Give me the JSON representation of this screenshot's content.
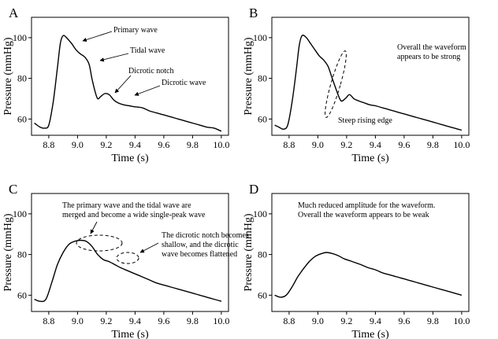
{
  "chart_data": [
    {
      "panel": "A",
      "type": "line",
      "xlabel": "Time (s)",
      "ylabel": "Pressure (mmHg)",
      "xticks": [
        "8.8",
        "9.0",
        "9.2",
        "9.4",
        "9.6",
        "9.8",
        "10.0"
      ],
      "yticks": [
        "60",
        "80",
        "100"
      ],
      "xlim": [
        8.68,
        10.05
      ],
      "ylim": [
        52,
        110
      ],
      "series": [
        {
          "x": [
            8.7,
            8.74,
            8.77,
            8.8,
            8.83,
            8.86,
            8.88,
            8.9,
            8.93,
            8.96,
            8.99,
            9.02,
            9.05,
            9.08,
            9.1,
            9.12,
            9.14,
            9.16,
            9.19,
            9.22,
            9.25,
            9.28,
            9.32,
            9.36,
            9.4,
            9.45,
            9.5,
            9.55,
            9.6,
            9.65,
            9.7,
            9.75,
            9.8,
            9.85,
            9.9,
            9.95,
            10.0
          ],
          "y": [
            58,
            56,
            55.5,
            57,
            68,
            85,
            97,
            101,
            99.5,
            97,
            94,
            92,
            90.5,
            87,
            80,
            74,
            70,
            71,
            72.5,
            72,
            69.5,
            68,
            67,
            66.5,
            66,
            65.5,
            64,
            63,
            62,
            61,
            60,
            59,
            58,
            57,
            56,
            55.5,
            54
          ]
        }
      ],
      "annotations": [
        {
          "text": "Primary wave",
          "x": 8.88,
          "y": 101
        },
        {
          "text": "Tidal wave",
          "x": 9.03,
          "y": 92
        },
        {
          "text": "Dicrotic notch",
          "x": 9.16,
          "y": 71
        },
        {
          "text": "Dicrotic wave",
          "x": 9.28,
          "y": 72.5
        }
      ]
    },
    {
      "panel": "B",
      "type": "line",
      "xlabel": "Time (s)",
      "ylabel": "Pressure (mmHg)",
      "xticks": [
        "8.8",
        "9.0",
        "9.2",
        "9.4",
        "9.6",
        "9.8",
        "10.0"
      ],
      "yticks": [
        "60",
        "80",
        "100"
      ],
      "xlim": [
        8.68,
        10.05
      ],
      "ylim": [
        52,
        110
      ],
      "series": [
        {
          "x": [
            8.7,
            8.73,
            8.76,
            8.79,
            8.82,
            8.85,
            8.87,
            8.89,
            8.92,
            8.95,
            8.98,
            9.01,
            9.04,
            9.07,
            9.1,
            9.13,
            9.16,
            9.19,
            9.22,
            9.25,
            9.28,
            9.32,
            9.36,
            9.4,
            9.45,
            9.5,
            9.55,
            9.6,
            9.65,
            9.7,
            9.75,
            9.8,
            9.85,
            9.9,
            9.95,
            10.0
          ],
          "y": [
            57,
            56,
            55,
            57,
            68,
            84,
            96,
            101,
            100,
            97,
            94,
            91,
            89,
            86,
            80,
            74,
            69,
            70,
            72,
            70,
            69,
            68,
            67,
            66.5,
            65.5,
            64.5,
            63.5,
            62.5,
            61.5,
            60.5,
            59.5,
            58.5,
            57.5,
            56.5,
            55.5,
            54.5
          ]
        }
      ],
      "annotations": [
        {
          "text": "Overall the waveform"
        },
        {
          "text": "appears to be strong"
        },
        {
          "text": "Steep rising edge"
        }
      ]
    },
    {
      "panel": "C",
      "type": "line",
      "xlabel": "Time (s)",
      "ylabel": "Pressure (mmHg)",
      "xticks": [
        "8.8",
        "9.0",
        "9.2",
        "9.4",
        "9.6",
        "9.8",
        "10.0"
      ],
      "yticks": [
        "60",
        "80",
        "100"
      ],
      "xlim": [
        8.68,
        10.05
      ],
      "ylim": [
        52,
        110
      ],
      "series": [
        {
          "x": [
            8.7,
            8.74,
            8.78,
            8.82,
            8.86,
            8.9,
            8.94,
            8.98,
            9.02,
            9.06,
            9.1,
            9.14,
            9.18,
            9.22,
            9.26,
            9.3,
            9.35,
            9.4,
            9.45,
            9.5,
            9.55,
            9.6,
            9.65,
            9.7,
            9.75,
            9.8,
            9.85,
            9.9,
            9.95,
            10.0
          ],
          "y": [
            58,
            57,
            58,
            66,
            75,
            81,
            85,
            86.5,
            87,
            86.5,
            84,
            80,
            77.5,
            76.5,
            75,
            73.5,
            72,
            70.5,
            69,
            67.5,
            66,
            65,
            64,
            63,
            62,
            61,
            60,
            59,
            58,
            57
          ]
        }
      ],
      "annotations": [
        {
          "text": "The primary wave and the tidal wave are"
        },
        {
          "text": "merged and become a wide single-peak wave"
        },
        {
          "text": "The dicrotic notch becomes"
        },
        {
          "text": "shallow, and the dicrotic"
        },
        {
          "text": "wave becomes flattened"
        }
      ]
    },
    {
      "panel": "D",
      "type": "line",
      "xlabel": "Time (s)",
      "ylabel": "Pressure (mmHg)",
      "xticks": [
        "8.8",
        "9.0",
        "9.2",
        "9.4",
        "9.6",
        "9.8",
        "10.0"
      ],
      "yticks": [
        "60",
        "80",
        "100"
      ],
      "xlim": [
        8.68,
        10.05
      ],
      "ylim": [
        52,
        110
      ],
      "series": [
        {
          "x": [
            8.7,
            8.74,
            8.78,
            8.82,
            8.86,
            8.9,
            8.94,
            8.98,
            9.02,
            9.06,
            9.1,
            9.14,
            9.18,
            9.22,
            9.26,
            9.3,
            9.35,
            9.4,
            9.45,
            9.5,
            9.55,
            9.6,
            9.65,
            9.7,
            9.75,
            9.8,
            9.85,
            9.9,
            9.95,
            10.0
          ],
          "y": [
            60,
            59,
            60,
            64,
            69,
            73,
            76.5,
            79,
            80.3,
            81,
            80.5,
            79.5,
            78,
            77,
            76,
            75,
            73.5,
            72.5,
            71,
            70,
            69,
            68,
            67,
            66,
            65,
            64,
            63,
            62,
            61,
            60
          ]
        }
      ],
      "annotations": [
        {
          "text": "Much reduced amplitude for the waveform."
        },
        {
          "text": "Overall the waveform appears to be weak"
        }
      ]
    }
  ]
}
